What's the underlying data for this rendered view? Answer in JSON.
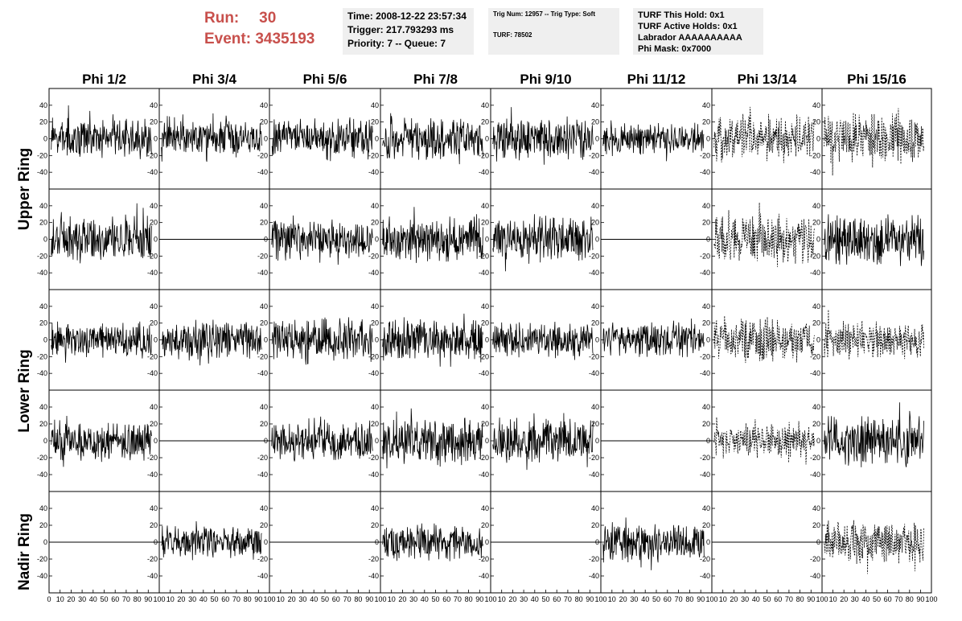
{
  "header": {
    "run_label": "Run:",
    "run_value": "30",
    "event_label": "Event:",
    "event_value": "3435193",
    "time_line": "Time: 2008-12-22 23:57:34",
    "trigger_line": "Trigger: 217.793293 ms",
    "priority_line": "Priority: 7 -- Queue: 7",
    "trig_num_line": "Trig Num: 12957 -- Trig Type: Soft",
    "turf_line": "TURF: 78502",
    "turf_this_hold": "TURF This Hold: 0x1",
    "turf_active_holds": "TURF Active Holds: 0x1",
    "labrador": "Labrador AAAAAAAAAA",
    "phi_mask": "Phi Mask: 0x7000",
    "accent_color": "#c8504c",
    "box_color": "#efefef"
  },
  "chart_data": {
    "type": "line",
    "columns": [
      "Phi 1/2",
      "Phi 3/4",
      "Phi 5/6",
      "Phi 7/8",
      "Phi 9/10",
      "Phi 11/12",
      "Phi 13/14",
      "Phi 15/16"
    ],
    "rows": [
      "Upper Ring",
      "Upper Ring",
      "Lower Ring",
      "Lower Ring",
      "Nadir Ring"
    ],
    "row_labels": [
      {
        "text": "Upper Ring",
        "spans_rows": [
          0,
          1
        ]
      },
      {
        "text": "Lower Ring",
        "spans_rows": [
          2,
          3
        ]
      },
      {
        "text": "Nadir Ring",
        "spans_rows": [
          4
        ]
      }
    ],
    "xlim": [
      0,
      100
    ],
    "ylim": [
      -60,
      60
    ],
    "y_ticks": [
      -40,
      -20,
      0,
      20,
      40
    ],
    "x_ticks": [
      0,
      10,
      20,
      30,
      40,
      50,
      60,
      70,
      80,
      90,
      100
    ],
    "grid": false,
    "description_note": "each panel is a noisy waveform trace; flat lines at 0 mean no signal",
    "panels": [
      [
        {
          "state": "noise",
          "amp": 22,
          "dashed": false
        },
        {
          "state": "noise",
          "amp": 20,
          "dashed": false
        },
        {
          "state": "noise",
          "amp": 22,
          "dashed": false
        },
        {
          "state": "noise",
          "amp": 24,
          "dashed": false
        },
        {
          "state": "noise",
          "amp": 24,
          "dashed": false
        },
        {
          "state": "noise",
          "amp": 18,
          "dashed": false
        },
        {
          "state": "noise",
          "amp": 26,
          "dashed": true
        },
        {
          "state": "noise",
          "amp": 28,
          "dashed": true
        }
      ],
      [
        {
          "state": "noise",
          "amp": 26,
          "dashed": false
        },
        {
          "state": "flat",
          "amp": 0,
          "dashed": false
        },
        {
          "state": "noise",
          "amp": 22,
          "dashed": false
        },
        {
          "state": "noise",
          "amp": 26,
          "dashed": false
        },
        {
          "state": "noise",
          "amp": 26,
          "dashed": false
        },
        {
          "state": "flat",
          "amp": 0,
          "dashed": false
        },
        {
          "state": "noise",
          "amp": 26,
          "dashed": true
        },
        {
          "state": "noise",
          "amp": 30,
          "dashed": false
        }
      ],
      [
        {
          "state": "noise",
          "amp": 20,
          "dashed": false
        },
        {
          "state": "noise",
          "amp": 22,
          "dashed": false
        },
        {
          "state": "noise",
          "amp": 24,
          "dashed": false
        },
        {
          "state": "noise",
          "amp": 24,
          "dashed": false
        },
        {
          "state": "noise",
          "amp": 20,
          "dashed": false
        },
        {
          "state": "noise",
          "amp": 20,
          "dashed": false
        },
        {
          "state": "noise",
          "amp": 24,
          "dashed": true
        },
        {
          "state": "noise",
          "amp": 22,
          "dashed": true
        }
      ],
      [
        {
          "state": "noise",
          "amp": 22,
          "dashed": false
        },
        {
          "state": "flat",
          "amp": 0,
          "dashed": false
        },
        {
          "state": "noise",
          "amp": 22,
          "dashed": false
        },
        {
          "state": "noise",
          "amp": 26,
          "dashed": false
        },
        {
          "state": "noise",
          "amp": 24,
          "dashed": false
        },
        {
          "state": "flat",
          "amp": 0,
          "dashed": false
        },
        {
          "state": "noise",
          "amp": 20,
          "dashed": true
        },
        {
          "state": "noise",
          "amp": 28,
          "dashed": false
        }
      ],
      [
        {
          "state": "flat",
          "amp": 0,
          "dashed": false
        },
        {
          "state": "noise",
          "amp": 18,
          "dashed": false
        },
        {
          "state": "flat",
          "amp": 0,
          "dashed": false
        },
        {
          "state": "noise",
          "amp": 20,
          "dashed": false
        },
        {
          "state": "flat",
          "amp": 0,
          "dashed": false
        },
        {
          "state": "noise",
          "amp": 22,
          "dashed": false
        },
        {
          "state": "flat",
          "amp": 0,
          "dashed": false
        },
        {
          "state": "noise",
          "amp": 24,
          "dashed": true
        }
      ]
    ]
  }
}
